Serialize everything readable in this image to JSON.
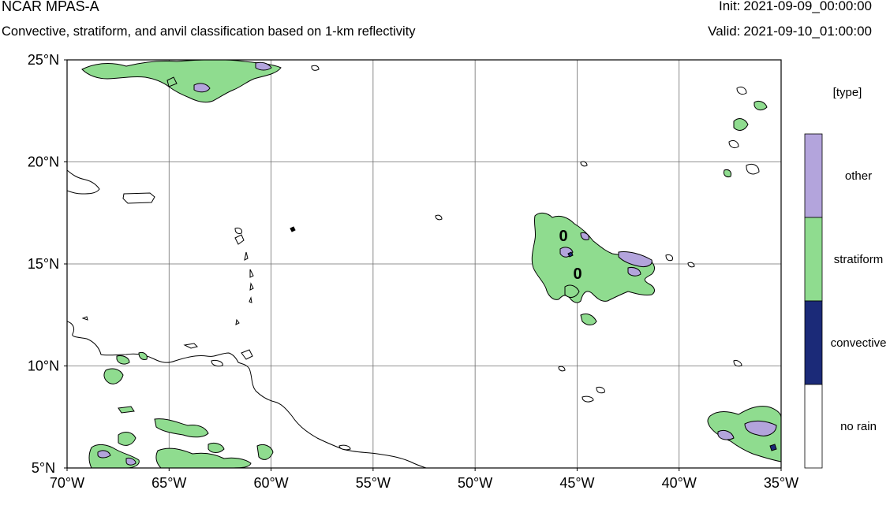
{
  "header": {
    "title": "NCAR MPAS-A",
    "subtitle": "Convective, stratiform, and anvil classification based on 1-km reflectivity",
    "init_label": "Init:",
    "init_value": "2021-09-09_00:00:00",
    "valid_label": "Valid:",
    "valid_value": "2021-09-10_01:00:00"
  },
  "map": {
    "lon_range": [
      -70,
      -35
    ],
    "lat_range": [
      5,
      25
    ],
    "gridlines": true,
    "lon_ticks": [
      {
        "value": -70,
        "label": "70°W"
      },
      {
        "value": -65,
        "label": "65°W"
      },
      {
        "value": -60,
        "label": "60°W"
      },
      {
        "value": -55,
        "label": "55°W"
      },
      {
        "value": -50,
        "label": "50°W"
      },
      {
        "value": -45,
        "label": "45°W"
      },
      {
        "value": -40,
        "label": "40°W"
      },
      {
        "value": -35,
        "label": "35°W"
      }
    ],
    "lat_ticks": [
      {
        "value": 5,
        "label": "5°N"
      },
      {
        "value": 10,
        "label": "10°N"
      },
      {
        "value": 15,
        "label": "15°N"
      },
      {
        "value": 20,
        "label": "20°N"
      },
      {
        "value": 25,
        "label": "25°N"
      }
    ],
    "contour_labels": [
      "0",
      "0"
    ]
  },
  "legend": {
    "title": "[type]",
    "placement": "right",
    "items": [
      {
        "label": "other",
        "color": "#b3a4dc"
      },
      {
        "label": "stratiform",
        "color": "#8fdc8f"
      },
      {
        "label": "convective",
        "color": "#1b2a78"
      },
      {
        "label": "no rain",
        "color": "#ffffff"
      }
    ]
  },
  "colors": {
    "stratiform": "#8fdc8f",
    "other": "#b3a4dc",
    "convective": "#1b2a78",
    "contour": "#000000",
    "gridline": "#6e6e6e"
  }
}
